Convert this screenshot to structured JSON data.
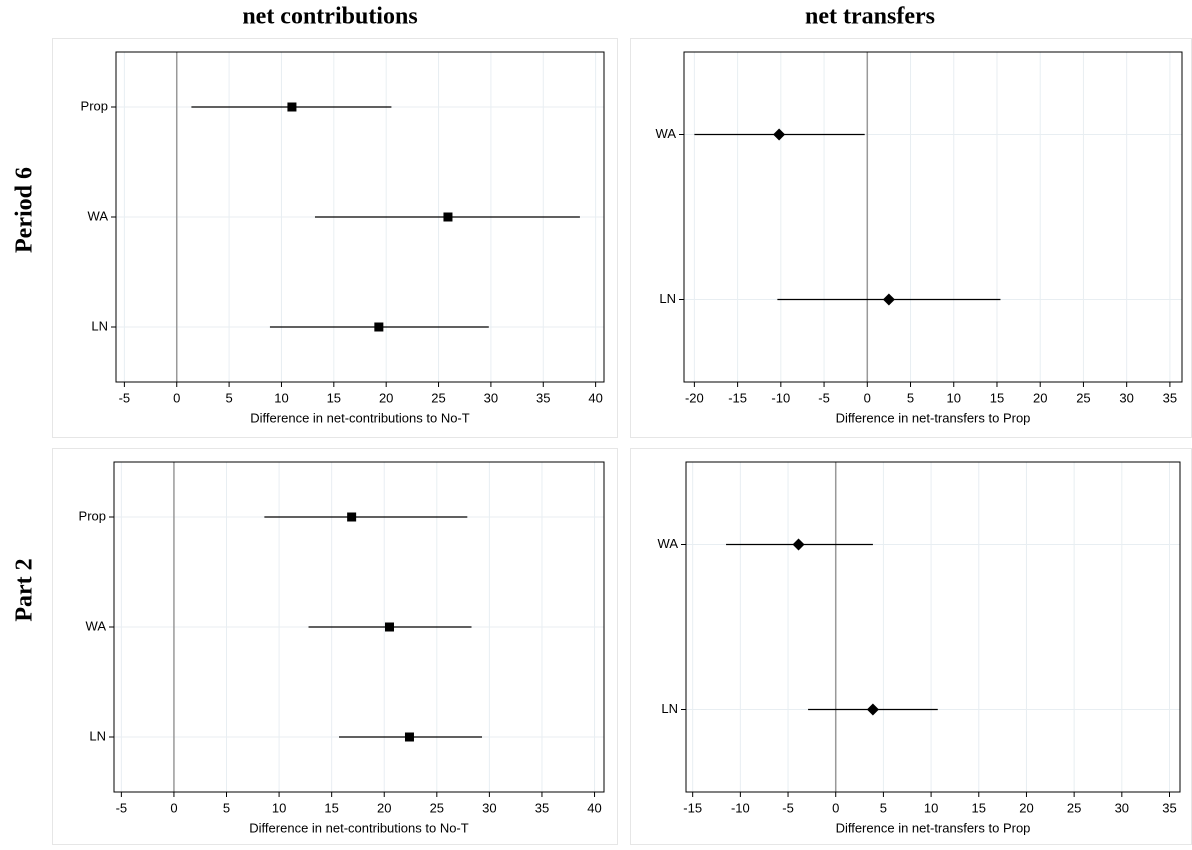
{
  "layout": {
    "column_titles": [
      "net contributions",
      "net transfers"
    ],
    "row_titles": [
      "Period 6",
      "Part 2"
    ]
  },
  "chart_data": [
    {
      "type": "errorbar",
      "marker": "square",
      "color": "#000000",
      "grid": true,
      "ref_line": 0,
      "categories": [
        "Prop",
        "WA",
        "LN"
      ],
      "values": [
        11.0,
        25.9,
        19.3
      ],
      "lower": [
        1.4,
        13.2,
        8.9
      ],
      "upper": [
        20.5,
        38.5,
        29.8
      ],
      "xlabel": "Difference in net-contributions to No-T",
      "xlim": [
        -5.8,
        40.8
      ],
      "xticks": [
        -5,
        0,
        5,
        10,
        15,
        20,
        25,
        30,
        35,
        40
      ]
    },
    {
      "type": "errorbar",
      "marker": "diamond",
      "color": "#000000",
      "grid": true,
      "ref_line": 0,
      "categories": [
        "WA",
        "LN"
      ],
      "values": [
        -10.2,
        2.5
      ],
      "lower": [
        -20.0,
        -10.4
      ],
      "upper": [
        -0.3,
        15.4
      ],
      "xlabel": "Difference in net-transfers to Prop",
      "xlim": [
        -21.2,
        36.4
      ],
      "xticks": [
        -20,
        -15,
        -10,
        -5,
        0,
        5,
        10,
        15,
        20,
        25,
        30,
        35
      ]
    },
    {
      "type": "errorbar",
      "marker": "square",
      "color": "#000000",
      "grid": true,
      "ref_line": 0,
      "categories": [
        "Prop",
        "WA",
        "LN"
      ],
      "values": [
        16.9,
        20.5,
        22.4
      ],
      "lower": [
        8.6,
        12.8,
        15.7
      ],
      "upper": [
        27.9,
        28.3,
        29.3
      ],
      "xlabel": "Difference in net-contributions to No-T",
      "xlim": [
        -5.7,
        40.9
      ],
      "xticks": [
        -5,
        0,
        5,
        10,
        15,
        20,
        25,
        30,
        35,
        40
      ]
    },
    {
      "type": "errorbar",
      "marker": "diamond",
      "color": "#000000",
      "grid": true,
      "ref_line": 0,
      "categories": [
        "WA",
        "LN"
      ],
      "values": [
        -3.9,
        3.9
      ],
      "lower": [
        -11.5,
        -2.9
      ],
      "upper": [
        3.9,
        10.7
      ],
      "xlabel": "Difference in net-transfers to Prop",
      "xlim": [
        -15.7,
        36.1
      ],
      "xticks": [
        -15,
        -10,
        -5,
        0,
        5,
        10,
        15,
        20,
        25,
        30,
        35
      ]
    }
  ]
}
